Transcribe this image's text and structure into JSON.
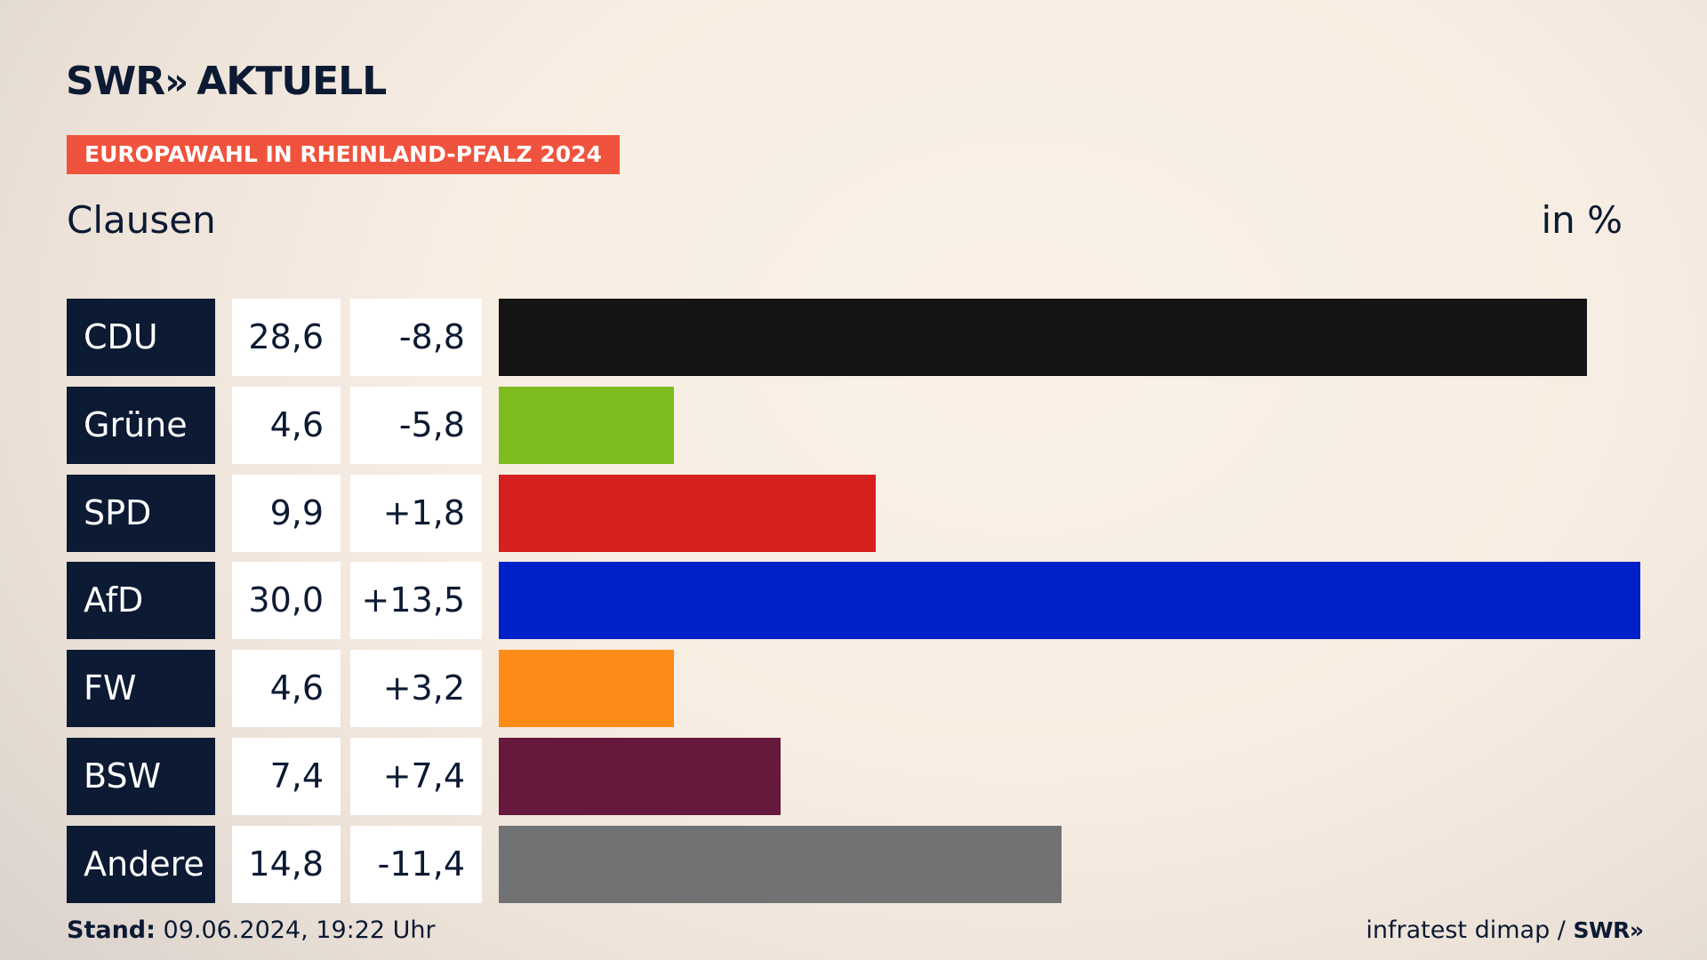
{
  "header": {
    "logo_main": "SWR",
    "logo_chevrons": "»",
    "logo_sub": "AKTUELL",
    "tag": "EUROPAWAHL IN RHEINLAND-PFALZ 2024",
    "region": "Clausen",
    "unit": "in %"
  },
  "colors": {
    "background": "#f7ede2",
    "text_dark": "#0c1a33",
    "tag_bg": "#f0533d"
  },
  "chart_data": {
    "type": "bar",
    "orientation": "horizontal",
    "categories": [
      "CDU",
      "Grüne",
      "SPD",
      "AfD",
      "FW",
      "BSW",
      "Andere"
    ],
    "values": [
      28.6,
      4.6,
      9.9,
      30.0,
      4.6,
      7.4,
      14.8
    ],
    "values_label": [
      "28,6",
      "4,6",
      "9,9",
      "30,0",
      "4,6",
      "7,4",
      "14,8"
    ],
    "diff": [
      -8.8,
      -5.8,
      1.8,
      13.5,
      3.2,
      7.4,
      -11.4
    ],
    "diff_label": [
      "-8,8",
      "-5,8",
      "+1,8",
      "+13,5",
      "+3,2",
      "+7,4",
      "-11,4"
    ],
    "bar_colors": [
      "#141414",
      "#7cbc1f",
      "#d6201f",
      "#0021c8",
      "#fd8b17",
      "#66183d",
      "#717274"
    ],
    "xlim": [
      0,
      30
    ],
    "unit": "in %"
  },
  "footer": {
    "stand_label": "Stand:",
    "stand_value": "09.06.2024, 19:22 Uhr",
    "source": "infratest dimap /",
    "source_logo": "SWR",
    "source_logo_chev": "»"
  }
}
